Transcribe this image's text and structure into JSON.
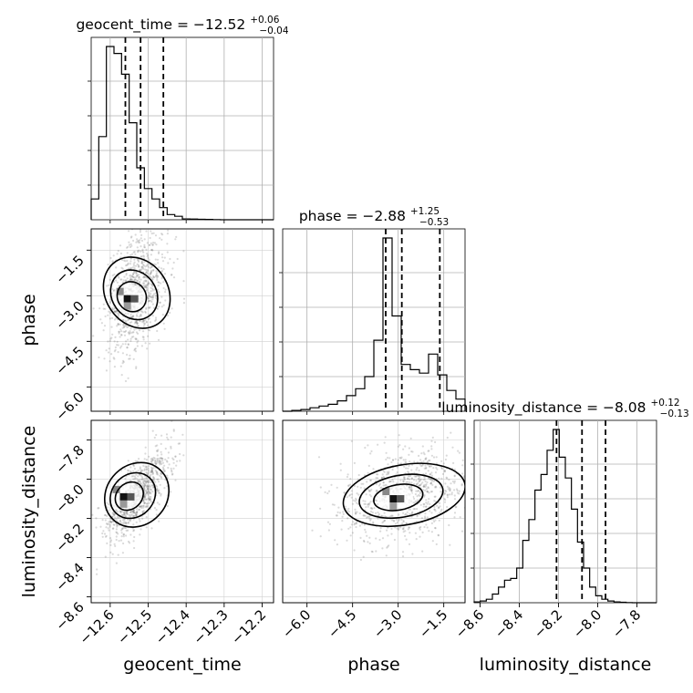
{
  "chart_data": {
    "type": "corner",
    "parameters": [
      "geocent_time",
      "phase",
      "luminosity_distance"
    ],
    "axis_labels": [
      "geocent_time",
      "phase",
      "luminosity_distance"
    ],
    "titles": [
      {
        "prefix": "geocent_time = −12.52",
        "upper": "+0.06",
        "lower": "−0.04"
      },
      {
        "prefix": "phase = −2.88",
        "upper": "+1.25",
        "lower": "−0.53"
      },
      {
        "prefix": "luminosity_distance = −8.08",
        "upper": "+0.12",
        "lower": "−0.13"
      }
    ],
    "ranges": [
      [
        -12.65,
        -12.17
      ],
      [
        -6.8,
        -0.8
      ],
      [
        -8.63,
        -7.7
      ]
    ],
    "ticks": [
      {
        "values": [
          -12.6,
          -12.5,
          -12.4,
          -12.3,
          -12.2
        ],
        "labels": [
          "−12.6",
          "−12.5",
          "−12.4",
          "−12.3",
          "−12.2"
        ]
      },
      {
        "values": [
          -6.0,
          -4.5,
          -3.0,
          -1.5
        ],
        "labels": [
          "−6.0",
          "−4.5",
          "−3.0",
          "−1.5"
        ]
      },
      {
        "values": [
          -8.6,
          -8.4,
          -8.2,
          -8.0,
          -7.8
        ],
        "labels": [
          "−8.6",
          "−8.4",
          "−8.2",
          "−8.0",
          "−7.8"
        ]
      }
    ],
    "quantiles": [
      [
        -12.56,
        -12.52,
        -12.46
      ],
      [
        -3.41,
        -2.88,
        -1.63
      ],
      [
        -8.21,
        -8.08,
        -7.96
      ]
    ],
    "histograms": [
      {
        "edges_start": -12.65,
        "bin_width": 0.02,
        "counts": [
          0.12,
          0.48,
          1.0,
          0.96,
          0.84,
          0.56,
          0.3,
          0.18,
          0.12,
          0.07,
          0.03,
          0.02,
          0.005,
          0.004,
          0.003,
          0.002,
          0.001,
          0.0,
          0.0,
          0.0,
          0.0,
          0.0,
          0.0,
          0.0
        ]
      },
      {
        "edges_start": -6.8,
        "bin_width": 0.3,
        "counts": [
          0.0,
          0.005,
          0.01,
          0.02,
          0.03,
          0.04,
          0.06,
          0.09,
          0.13,
          0.2,
          0.41,
          1.0,
          0.55,
          0.27,
          0.24,
          0.22,
          0.33,
          0.21,
          0.12,
          0.07
        ]
      },
      {
        "edges_start": -8.63,
        "bin_width": 0.031,
        "counts": [
          0.005,
          0.01,
          0.02,
          0.05,
          0.09,
          0.13,
          0.14,
          0.2,
          0.36,
          0.48,
          0.65,
          0.74,
          0.88,
          1.0,
          0.84,
          0.72,
          0.54,
          0.35,
          0.2,
          0.09,
          0.04,
          0.02,
          0.01,
          0.005,
          0.003,
          0.001,
          0.0,
          0.0,
          0.0,
          0.0
        ]
      }
    ],
    "joint": [
      {
        "x": 0,
        "y": 1,
        "mean": [
          -12.53,
          -2.9
        ],
        "std": [
          0.04,
          1.0
        ],
        "corr": 0.35,
        "peak": [
          -12.55,
          -3.1
        ]
      },
      {
        "x": 0,
        "y": 2,
        "mean": [
          -12.53,
          -8.08
        ],
        "std": [
          0.045,
          0.12
        ],
        "corr": 0.75,
        "peak": [
          -12.56,
          -8.09
        ]
      },
      {
        "x": 1,
        "y": 2,
        "mean": [
          -2.8,
          -8.08
        ],
        "std": [
          1.1,
          0.12
        ],
        "corr": 0.25,
        "peak": [
          -3.1,
          -8.1
        ]
      }
    ],
    "grid": true
  }
}
